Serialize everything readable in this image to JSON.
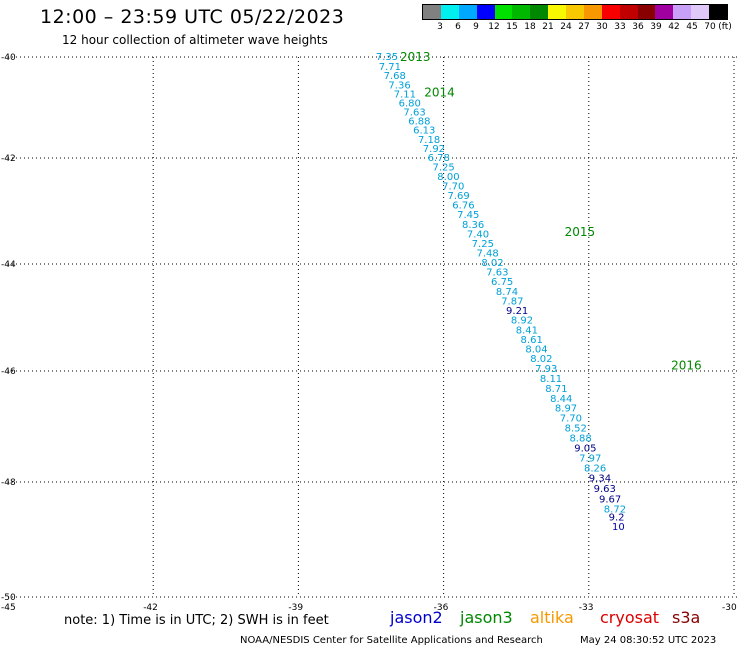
{
  "title": "12:00 – 23:59 UTC 05/22/2023",
  "subtitle": "12 hour collection of altimeter wave heights",
  "legend": {
    "labels": [
      "3",
      "6",
      "9",
      "12",
      "15",
      "18",
      "21",
      "24",
      "27",
      "30",
      "33",
      "36",
      "39",
      "42",
      "45",
      "70",
      "(ft)"
    ],
    "colors": [
      "#808080",
      "#00f0f0",
      "#00a8ff",
      "#0000ff",
      "#00e000",
      "#00b800",
      "#008800",
      "#f8f800",
      "#f8c800",
      "#f89800",
      "#f80000",
      "#c00000",
      "#880000",
      "#a000a0",
      "#c8a0f8",
      "#e0c8f8",
      "#000000"
    ]
  },
  "axes": {
    "lat_labels": [
      "-40",
      "-42",
      "-44",
      "-46",
      "-48",
      "-50"
    ],
    "lon_labels": [
      "-45",
      "-42",
      "-39",
      "-36",
      "-33",
      "-30"
    ]
  },
  "time_labels": [
    {
      "text": "2013",
      "lon": -36.9,
      "lat": -40.0
    },
    {
      "text": "2014",
      "lon": -36.4,
      "lat": -40.7
    },
    {
      "text": "2015",
      "lon": -33.5,
      "lat": -43.4
    },
    {
      "text": "2016",
      "lon": -31.3,
      "lat": -45.9
    }
  ],
  "wave_heights": [
    {
      "v": "7.35",
      "lon": -37.4,
      "lat": -40.0
    },
    {
      "v": "7.71",
      "lon": -37.34,
      "lat": -40.2
    },
    {
      "v": "7.68",
      "lon": -37.24,
      "lat": -40.38
    },
    {
      "v": "7.36",
      "lon": -37.14,
      "lat": -40.56
    },
    {
      "v": "7.11",
      "lon": -37.03,
      "lat": -40.74
    },
    {
      "v": "6.80",
      "lon": -36.93,
      "lat": -40.92
    },
    {
      "v": "7.63",
      "lon": -36.83,
      "lat": -41.1
    },
    {
      "v": "6.88",
      "lon": -36.73,
      "lat": -41.28
    },
    {
      "v": "6.13",
      "lon": -36.63,
      "lat": -41.46
    },
    {
      "v": "7.18",
      "lon": -36.53,
      "lat": -41.64
    },
    {
      "v": "7.92",
      "lon": -36.43,
      "lat": -41.82
    },
    {
      "v": "6.78",
      "lon": -36.33,
      "lat": -42.0
    },
    {
      "v": "7.25",
      "lon": -36.23,
      "lat": -42.18
    },
    {
      "v": "8.00",
      "lon": -36.13,
      "lat": -42.36
    },
    {
      "v": "7.70",
      "lon": -36.03,
      "lat": -42.54
    },
    {
      "v": "7.69",
      "lon": -35.92,
      "lat": -42.72
    },
    {
      "v": "6.76",
      "lon": -35.82,
      "lat": -42.9
    },
    {
      "v": "7.45",
      "lon": -35.72,
      "lat": -43.08
    },
    {
      "v": "8.36",
      "lon": -35.62,
      "lat": -43.26
    },
    {
      "v": "7.40",
      "lon": -35.52,
      "lat": -43.44
    },
    {
      "v": "7.25",
      "lon": -35.42,
      "lat": -43.62
    },
    {
      "v": "7.48",
      "lon": -35.32,
      "lat": -43.8
    },
    {
      "v": "8.02",
      "lon": -35.22,
      "lat": -43.98
    },
    {
      "v": "7.63",
      "lon": -35.12,
      "lat": -44.16
    },
    {
      "v": "6.75",
      "lon": -35.02,
      "lat": -44.34
    },
    {
      "v": "8.74",
      "lon": -34.92,
      "lat": -44.52
    },
    {
      "v": "7.87",
      "lon": -34.81,
      "lat": -44.7
    },
    {
      "v": "9.21",
      "lon": -34.71,
      "lat": -44.88
    },
    {
      "v": "8.92",
      "lon": -34.61,
      "lat": -45.06
    },
    {
      "v": "8.41",
      "lon": -34.51,
      "lat": -45.24
    },
    {
      "v": "8.61",
      "lon": -34.41,
      "lat": -45.42
    },
    {
      "v": "8.04",
      "lon": -34.31,
      "lat": -45.6
    },
    {
      "v": "8.02",
      "lon": -34.21,
      "lat": -45.78
    },
    {
      "v": "7.93",
      "lon": -34.11,
      "lat": -45.96
    },
    {
      "v": "8.11",
      "lon": -34.01,
      "lat": -46.14
    },
    {
      "v": "8.71",
      "lon": -33.9,
      "lat": -46.32
    },
    {
      "v": "8.44",
      "lon": -33.8,
      "lat": -46.5
    },
    {
      "v": "8.97",
      "lon": -33.7,
      "lat": -46.68
    },
    {
      "v": "7.70",
      "lon": -33.6,
      "lat": -46.86
    },
    {
      "v": "8.52",
      "lon": -33.5,
      "lat": -47.04
    },
    {
      "v": "8.88",
      "lon": -33.4,
      "lat": -47.22
    },
    {
      "v": "9.05",
      "lon": -33.3,
      "lat": -47.4
    },
    {
      "v": "7.97",
      "lon": -33.2,
      "lat": -47.58
    },
    {
      "v": "8.26",
      "lon": -33.1,
      "lat": -47.76
    },
    {
      "v": "9.34",
      "lon": -33.0,
      "lat": -47.94
    },
    {
      "v": "9.63",
      "lon": -32.9,
      "lat": -48.12
    },
    {
      "v": "9.67",
      "lon": -32.79,
      "lat": -48.3
    },
    {
      "v": "8.72",
      "lon": -32.69,
      "lat": -48.48
    },
    {
      "v": "9.2",
      "lon": -32.59,
      "lat": -48.62
    },
    {
      "v": "10",
      "lon": -32.52,
      "lat": -48.78
    }
  ],
  "note": "note:  1) Time is in UTC;  2) SWH is in feet",
  "satellites": [
    {
      "name": "jason2",
      "color": "#0000cc"
    },
    {
      "name": "jason3",
      "color": "#008800"
    },
    {
      "name": "altika",
      "color": "#f89800"
    },
    {
      "name": "cryosat",
      "color": "#dd0000"
    },
    {
      "name": "s3a",
      "color": "#880000"
    }
  ],
  "footer_left": "NOAA/NESDIS Center for Satellite Applications and Research",
  "footer_right": "May 24 08:30:52 UTC 2023"
}
